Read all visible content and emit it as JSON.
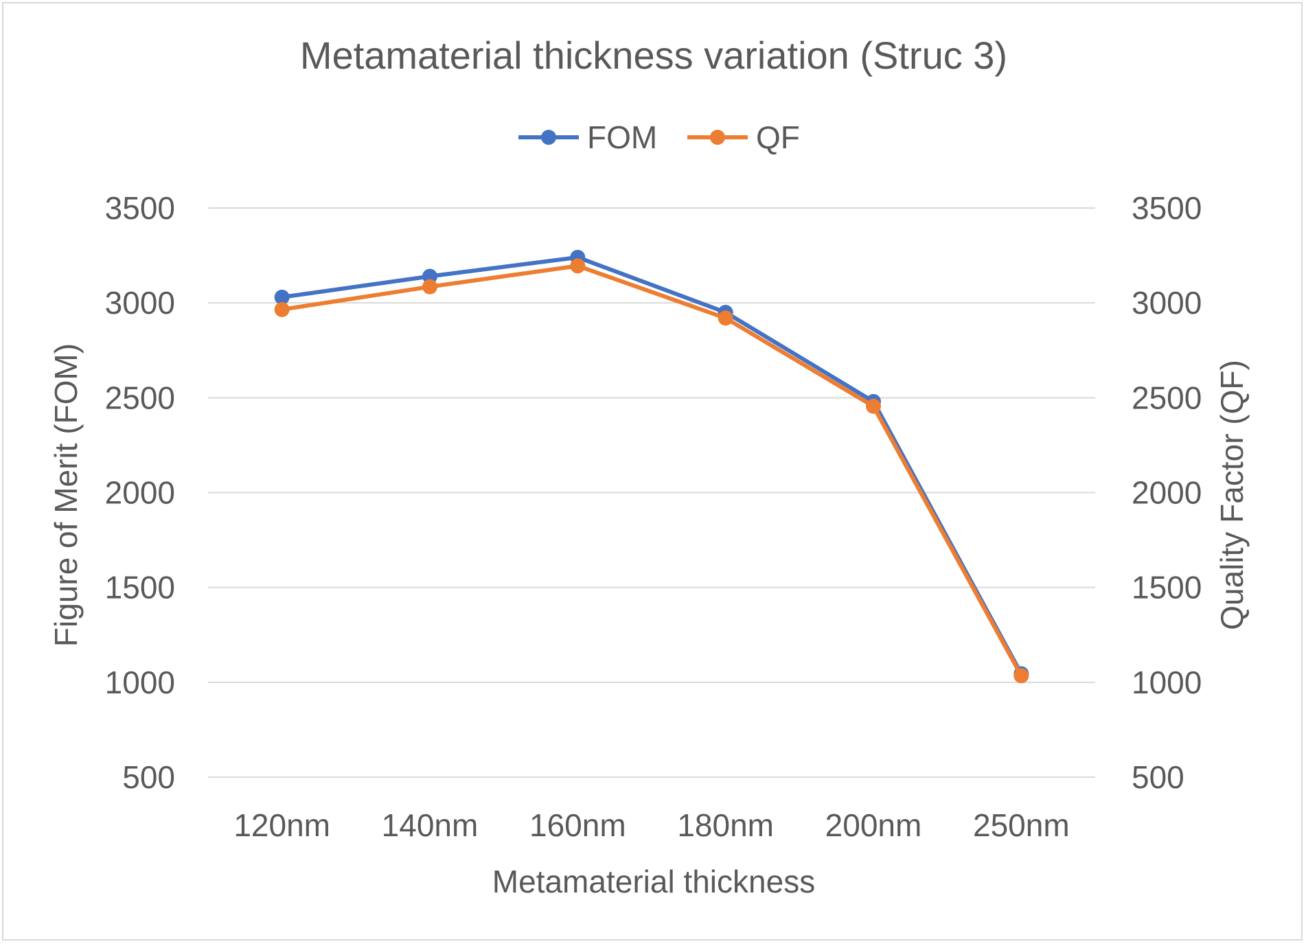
{
  "chart_data": {
    "type": "line",
    "title": "Metamaterial thickness variation (Struc 3)",
    "xlabel": "Metamaterial thickness",
    "ylabel": "Figure of Merit (FOM)",
    "y2label": "Quality Factor (QF)",
    "categories": [
      "120nm",
      "140nm",
      "160nm",
      "180nm",
      "200nm",
      "250nm"
    ],
    "ylim": [
      500,
      3500
    ],
    "y2lim": [
      500,
      3500
    ],
    "yticks": [
      "500",
      "1000",
      "1500",
      "2000",
      "2500",
      "3000",
      "3500"
    ],
    "y2ticks": [
      "500",
      "1000",
      "1500",
      "2000",
      "2500",
      "3000",
      "3500"
    ],
    "grid": true,
    "legend_position": "top",
    "series": [
      {
        "name": "FOM",
        "color": "#4472c4",
        "axis": "left",
        "values": [
          3030,
          3140,
          3240,
          2950,
          2480,
          1045
        ]
      },
      {
        "name": "QF",
        "color": "#ed7d31",
        "axis": "right",
        "values": [
          2965,
          3085,
          3195,
          2920,
          2455,
          1035
        ]
      }
    ]
  }
}
